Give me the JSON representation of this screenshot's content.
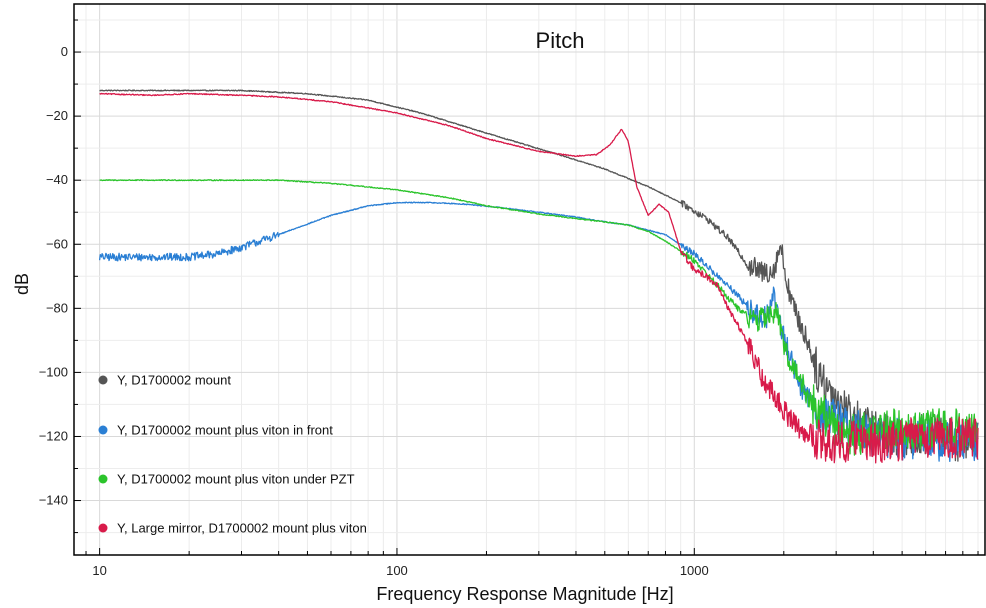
{
  "chart_data": {
    "type": "line",
    "title": "Pitch",
    "xlabel": "Frequency Response Magnitude [Hz]",
    "ylabel": "dB",
    "xscale": "log",
    "xlim": [
      8.2,
      9500
    ],
    "ylim": [
      -157,
      15
    ],
    "x_ticks": [
      {
        "value": 10,
        "label": "10"
      },
      {
        "value": 100,
        "label": "100"
      },
      {
        "value": 1000,
        "label": "1000"
      }
    ],
    "y_ticks": [
      {
        "value": 0,
        "label": "0"
      },
      {
        "value": -20,
        "label": "−20"
      },
      {
        "value": -40,
        "label": "−40"
      },
      {
        "value": -60,
        "label": "−60"
      },
      {
        "value": -80,
        "label": "−80"
      },
      {
        "value": -100,
        "label": "−100"
      },
      {
        "value": -120,
        "label": "−120"
      },
      {
        "value": -140,
        "label": "−140"
      }
    ],
    "grid": true,
    "legend_position": "bottom-left",
    "series": [
      {
        "name": "Y,  D1700002 mount",
        "color": "#555555",
        "x": [
          10,
          20,
          30,
          50,
          80,
          120,
          180,
          250,
          350,
          500,
          700,
          900,
          1100,
          1300,
          1500,
          1700,
          1850,
          1950,
          2050,
          2200,
          2400,
          2600,
          3000,
          3500,
          4000,
          5000,
          6000,
          7000,
          8000,
          9000
        ],
        "y": [
          -12,
          -12,
          -12,
          -13,
          -15,
          -19,
          -24,
          -28,
          -32,
          -36.5,
          -42,
          -47,
          -52,
          -58,
          -66,
          -69,
          -68,
          -60,
          -72,
          -82,
          -90,
          -100,
          -108,
          -115,
          -118,
          -120,
          -119,
          -120,
          -122,
          -119
        ]
      },
      {
        "name": "Y, D1700002 mount plus viton in front",
        "color": "#2a7fd4",
        "x": [
          10,
          15,
          20,
          25,
          30,
          40,
          60,
          80,
          100,
          130,
          170,
          220,
          300,
          400,
          500,
          600,
          800,
          1000,
          1200,
          1400,
          1600,
          1750,
          1850,
          1950,
          2100,
          2300,
          2600,
          3000,
          3500,
          4000,
          5000,
          6000,
          7000,
          8000,
          9000
        ],
        "y": [
          -64,
          -64,
          -64,
          -63,
          -61,
          -57,
          -51,
          -48,
          -47,
          -47,
          -47.5,
          -48.5,
          -50,
          -51.5,
          -53,
          -54,
          -57,
          -63,
          -70,
          -76,
          -82,
          -83,
          -76,
          -85,
          -95,
          -105,
          -112,
          -115,
          -118,
          -120,
          -121,
          -120,
          -122,
          -121,
          -122
        ]
      },
      {
        "name": "Y, D1700002 mount plus viton under PZT",
        "color": "#2bc42b",
        "x": [
          10,
          20,
          40,
          60,
          100,
          150,
          200,
          300,
          400,
          500,
          600,
          700,
          800,
          1000,
          1200,
          1400,
          1600,
          1800,
          1900,
          2000,
          2200,
          2500,
          3000,
          3500,
          4000,
          5000,
          6000,
          7000,
          8000,
          9000
        ],
        "y": [
          -40,
          -40,
          -40,
          -41,
          -43,
          -45.5,
          -48,
          -50.5,
          -52,
          -53,
          -54,
          -56,
          -59,
          -65,
          -73,
          -80,
          -84,
          -82,
          -81,
          -92,
          -100,
          -110,
          -117,
          -120,
          -118,
          -117,
          -118,
          -117,
          -118,
          -120
        ]
      },
      {
        "name": "Y, Large mirror, D1700002 mount plus viton",
        "color": "#d81b4a",
        "x": [
          10,
          15,
          20,
          30,
          40,
          60,
          100,
          150,
          200,
          300,
          400,
          470,
          520,
          570,
          600,
          640,
          700,
          760,
          820,
          900,
          1000,
          1100,
          1200,
          1300,
          1500,
          1700,
          2000,
          2300,
          2600,
          3000,
          3500,
          4000,
          5000,
          6000,
          7000,
          8000,
          9000
        ],
        "y": [
          -13,
          -13.5,
          -13,
          -13.5,
          -14,
          -15.5,
          -19,
          -23,
          -27,
          -31,
          -32.5,
          -32,
          -29,
          -24,
          -28,
          -42,
          -51,
          -47.5,
          -50,
          -62,
          -68,
          -70,
          -73,
          -80,
          -90,
          -102,
          -112,
          -118,
          -121,
          -122,
          -121,
          -122,
          -121,
          -120,
          -121,
          -120,
          -121
        ]
      }
    ]
  }
}
